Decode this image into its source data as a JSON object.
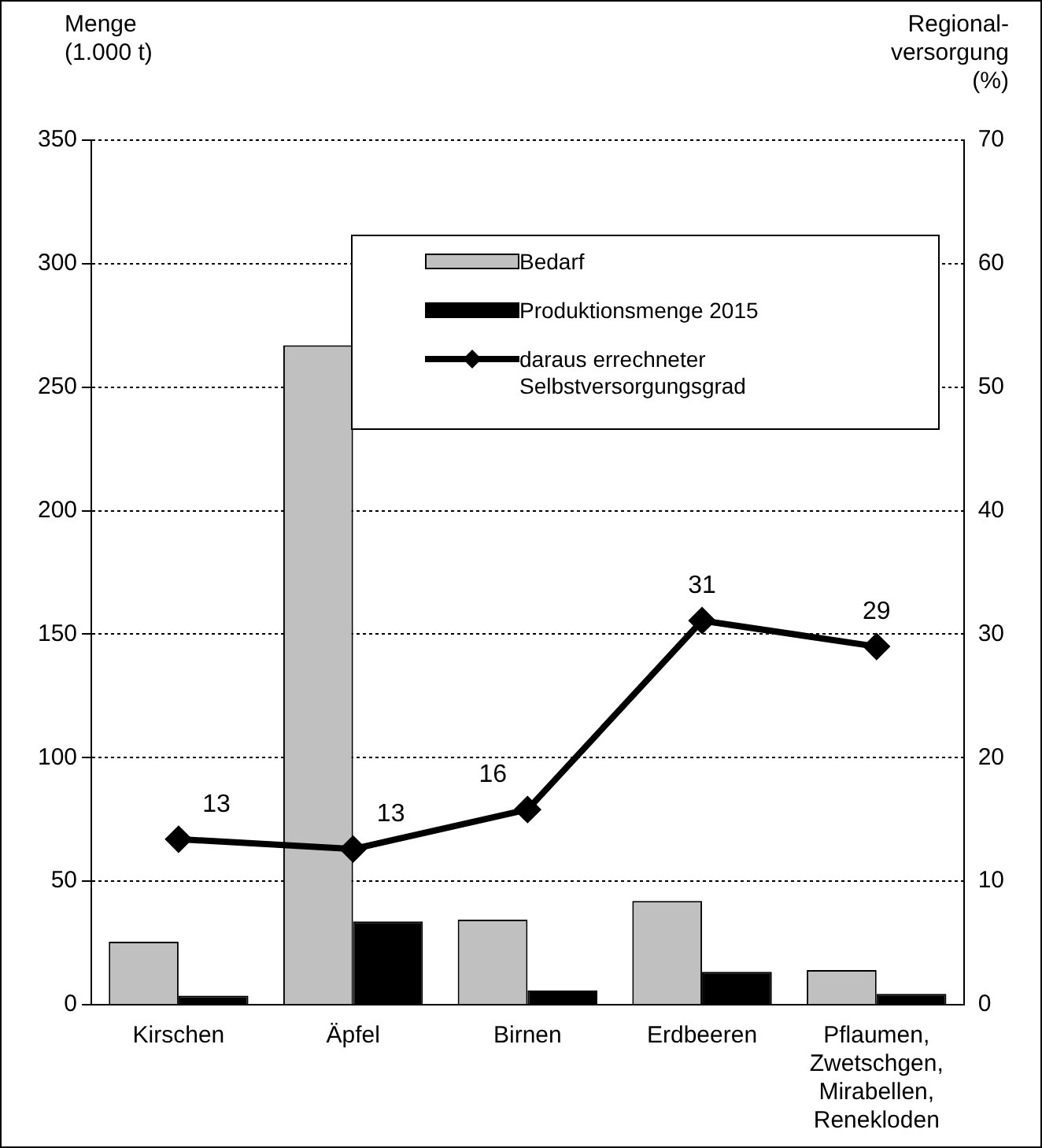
{
  "chart_data": {
    "type": "bar",
    "xlabel": null,
    "ylabel": "Menge\n(1.000 t)",
    "y2label": "Regional-\nversorgung\n(%)",
    "categories": [
      "Kirschen",
      "Äpfel",
      "Birnen",
      "Erdbeeren",
      "Pflaumen,\nZwetschgen,\nMirabellen,\nRenekloden"
    ],
    "series": [
      {
        "name": "Bedarf",
        "color": "#c0c0c0",
        "values": [
          25.5,
          267,
          34.4,
          42,
          14
        ]
      },
      {
        "name": "Produktionsmenge 2015",
        "color": "#000000",
        "values": [
          3.7,
          33.7,
          5.7,
          13.3,
          4.4
        ]
      },
      {
        "name": "daraus errechneter\nSelbstversorgungsgrad",
        "type": "line",
        "axis": "y2",
        "color": "#000000",
        "marker": "diamond",
        "values": [
          13.4,
          12.6,
          15.8,
          31.1,
          29.0
        ],
        "value_labels": [
          "13",
          "13",
          "16",
          "31",
          "29"
        ]
      }
    ],
    "ylim": [
      0,
      350
    ],
    "yticks": [
      0,
      50,
      100,
      150,
      200,
      250,
      300,
      350
    ],
    "y2lim": [
      0,
      70
    ],
    "y2ticks": [
      0,
      10,
      20,
      30,
      40,
      50,
      60,
      70
    ],
    "grid": "y",
    "legend": "top right"
  }
}
